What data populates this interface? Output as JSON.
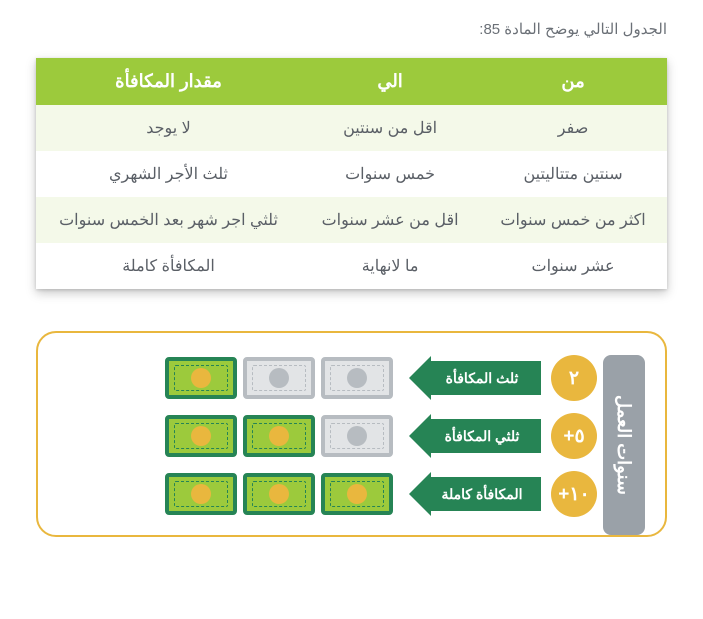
{
  "intro_text": "الجدول التالي يوضح المادة 85:",
  "table": {
    "headers": [
      "من",
      "الي",
      "مقدار المكافأة"
    ],
    "rows": [
      [
        "صفر",
        "اقل من سنتين",
        "لا يوجد"
      ],
      [
        "سنتين متتاليتين",
        "خمس سنوات",
        "ثلث الأجر الشهري"
      ],
      [
        "اكثر من خمس سنوات",
        "اقل من عشر سنوات",
        "ثلثي اجر شهر بعد الخمس سنوات"
      ],
      [
        "عشر سنوات",
        "ما لانهاية",
        "المكافأة كاملة"
      ]
    ]
  },
  "info": {
    "vertical_label": "سنوات العمل",
    "rows": [
      {
        "badge": "٢",
        "label": "ثلث المكافأة",
        "filled": 1,
        "total": 3
      },
      {
        "badge": "٥+",
        "label": "ثلثي المكافأة",
        "filled": 2,
        "total": 3
      },
      {
        "badge": "١٠+",
        "label": "المكافأة كاملة",
        "filled": 3,
        "total": 3
      }
    ]
  },
  "colors": {
    "header_bg": "#9cca3c",
    "row_alt": "#f4f9e9",
    "text": "#5a5f66",
    "badge": "#e9b73e",
    "arrow": "#268455",
    "bill_grey_border": "#b7bcc1",
    "bill_grey_fill": "#e2e4e6",
    "bill_green_border": "#268455",
    "bill_green_fill": "#9cca3c",
    "bill_green_coin": "#e9b73e",
    "vlabel_bg": "#9aa1a8"
  }
}
